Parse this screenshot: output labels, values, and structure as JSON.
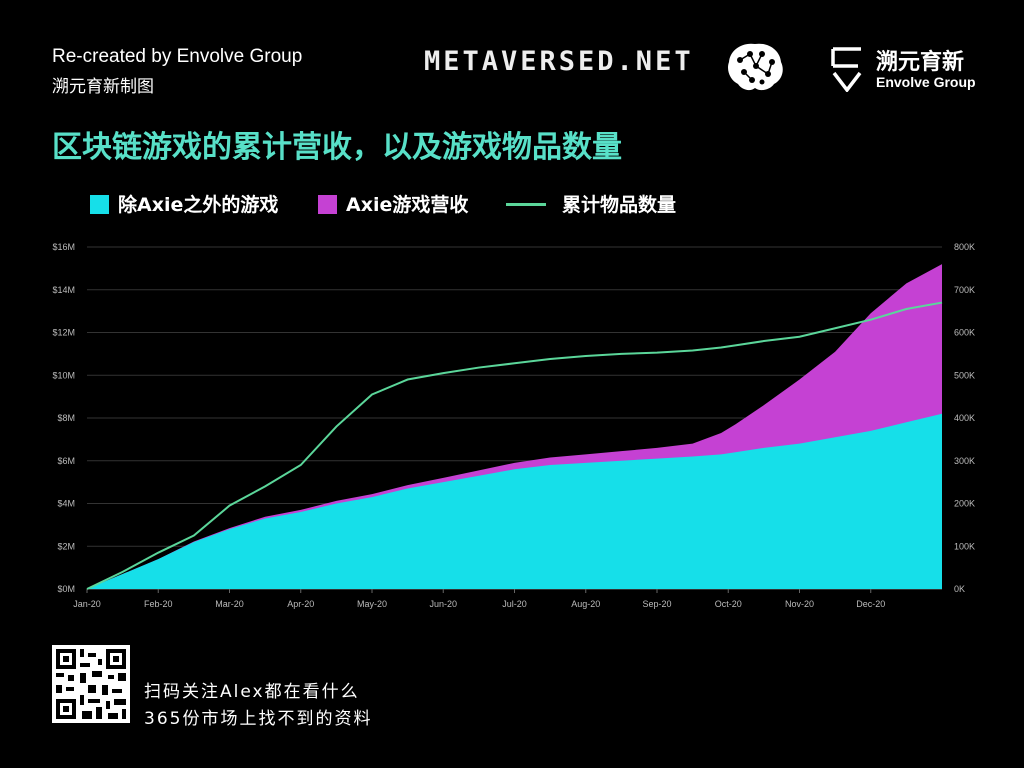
{
  "header": {
    "credit_en": "Re-created by Envolve Group",
    "credit_cn": "溯元育新制图",
    "metaversed": "METAVERSED.NET",
    "envolve_cn": "溯元育新",
    "envolve_en": "Envolve Group"
  },
  "footer": {
    "line1": "扫码关注Alex都在看什么",
    "line2": "365份市场上找不到的资料"
  },
  "colors": {
    "non_axie": "#16dfe9",
    "axie": "#c541d3",
    "items_line": "#5bd69a",
    "title": "#58e0c8",
    "grid": "#333333"
  },
  "chart_data": {
    "type": "area",
    "title": "区块链游戏的累计营收，以及游戏物品数量",
    "legend": [
      "除Axie之外的游戏",
      "Axie游戏营收",
      "累计物品数量"
    ],
    "legend_position": "top",
    "x_ticks": [
      "Jan-20",
      "Feb-20",
      "Mar-20",
      "Apr-20",
      "May-20",
      "Jun-20",
      "Jul-20",
      "Aug-20",
      "Sep-20",
      "Oct-20",
      "Nov-20",
      "Dec-20"
    ],
    "y_left_ticks": [
      "$0M",
      "$2M",
      "$4M",
      "$6M",
      "$8M",
      "$10M",
      "$12M",
      "$14M",
      "$16M"
    ],
    "y_right_ticks": [
      "0K",
      "100K",
      "200K",
      "300K",
      "400K",
      "500K",
      "600K",
      "700K",
      "800K"
    ],
    "y_left_range": [
      0,
      16
    ],
    "y_right_range": [
      0,
      800
    ],
    "x": [
      0,
      0.5,
      1,
      1.5,
      2,
      2.5,
      3,
      3.5,
      4,
      4.5,
      5,
      5.5,
      6,
      6.5,
      7,
      7.5,
      8,
      8.5,
      8.9,
      9.1,
      9.5,
      10,
      10.5,
      11,
      11.5,
      12
    ],
    "series": [
      {
        "name": "除Axie之外的游戏",
        "type": "area",
        "axis": "left",
        "values": [
          0,
          0.7,
          1.4,
          2.2,
          2.8,
          3.3,
          3.6,
          4.0,
          4.3,
          4.7,
          5.0,
          5.3,
          5.6,
          5.8,
          5.9,
          6.0,
          6.1,
          6.2,
          6.3,
          6.4,
          6.6,
          6.8,
          7.1,
          7.4,
          7.8,
          8.2
        ]
      },
      {
        "name": "Axie游戏营收",
        "type": "area",
        "axis": "left",
        "values": [
          0,
          0,
          0,
          0.02,
          0.05,
          0.08,
          0.1,
          0.12,
          0.14,
          0.16,
          0.2,
          0.25,
          0.3,
          0.35,
          0.4,
          0.45,
          0.5,
          0.6,
          1.0,
          1.3,
          2.0,
          3.0,
          4.0,
          5.5,
          6.5,
          7.0
        ]
      },
      {
        "name": "累计物品数量",
        "type": "line",
        "axis": "right",
        "values": [
          0,
          40,
          85,
          125,
          195,
          240,
          290,
          380,
          455,
          490,
          505,
          518,
          528,
          538,
          545,
          550,
          553,
          558,
          565,
          570,
          580,
          590,
          610,
          630,
          655,
          670
        ]
      }
    ]
  }
}
